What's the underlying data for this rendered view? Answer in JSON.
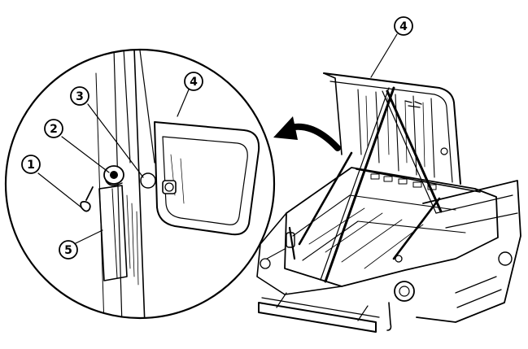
{
  "callouts": [
    {
      "id": "1",
      "label": "1"
    },
    {
      "id": "2",
      "label": "2"
    },
    {
      "id": "3",
      "label": "3"
    },
    {
      "id": "4-detail",
      "label": "4"
    },
    {
      "id": "5",
      "label": "5"
    },
    {
      "id": "4-main",
      "label": "4"
    }
  ]
}
